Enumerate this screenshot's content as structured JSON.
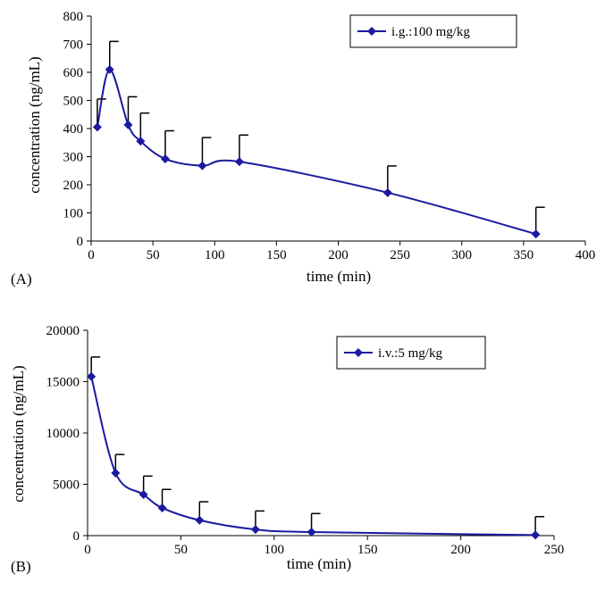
{
  "colors": {
    "series": "#1a1aa0",
    "axis": "#000000",
    "error_bar": "#000000"
  },
  "chart_data": [
    {
      "type": "line",
      "panel_label": "(A)",
      "xlabel": "time (min)",
      "ylabel": "concentration (ng/mL)",
      "xlim": [
        0,
        400
      ],
      "ylim": [
        0,
        800
      ],
      "x_ticks": [
        0,
        50,
        100,
        150,
        200,
        250,
        300,
        350,
        400
      ],
      "y_ticks": [
        0,
        100,
        200,
        300,
        400,
        500,
        600,
        700,
        800
      ],
      "grid": false,
      "legend_position": "top-right",
      "series": [
        {
          "name": "i.g.:100 mg/kg",
          "x": [
            5,
            15,
            30,
            40,
            60,
            90,
            120,
            240,
            360
          ],
          "y": [
            405,
            610,
            413,
            355,
            292,
            268,
            282,
            172,
            25
          ],
          "error": [
            100,
            100,
            100,
            100,
            100,
            100,
            95,
            95,
            95
          ]
        }
      ]
    },
    {
      "type": "line",
      "panel_label": "(B)",
      "xlabel": "time (min)",
      "ylabel": "concentration (ng/mL)",
      "xlim": [
        0,
        250
      ],
      "ylim": [
        0,
        20000
      ],
      "x_ticks": [
        0,
        50,
        100,
        150,
        200,
        250
      ],
      "y_ticks": [
        0,
        5000,
        10000,
        15000,
        20000
      ],
      "grid": false,
      "legend_position": "top-right",
      "series": [
        {
          "name": "i.v.:5 mg/kg",
          "x": [
            2,
            15,
            30,
            40,
            60,
            90,
            120,
            240
          ],
          "y": [
            15500,
            6100,
            4000,
            2700,
            1500,
            600,
            350,
            50
          ],
          "error": [
            1900,
            1800,
            1800,
            1800,
            1800,
            1800,
            1800,
            1800
          ]
        }
      ]
    }
  ]
}
